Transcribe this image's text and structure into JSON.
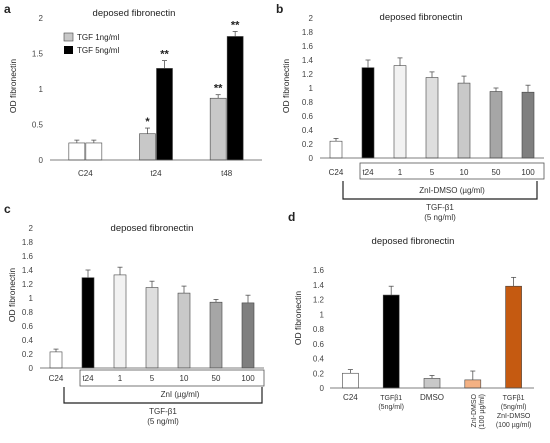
{
  "chart_data": [
    {
      "type": "bar",
      "panel": "a",
      "title": "deposed fibronectin",
      "ylabel": "OD fibronectin",
      "ylim": [
        0,
        2
      ],
      "yticks": [
        "0",
        "0.5",
        "1",
        "1.5",
        "2"
      ],
      "yticks_values": [
        0,
        0.5,
        1,
        1.5,
        2
      ],
      "categories": [
        "C24",
        "t24",
        "t48"
      ],
      "series": [
        {
          "name": "TGF 1ng/ml",
          "values": [
            0.24,
            0.37,
            0.87
          ],
          "errors": [
            0.04,
            0.08,
            0.05
          ],
          "color": "#c8c8c8",
          "stars": [
            "",
            "*",
            "**"
          ]
        },
        {
          "name": "TGF 5ng/ml",
          "values": [
            0.24,
            1.29,
            1.74
          ],
          "errors": [
            0.04,
            0.11,
            0.07
          ],
          "color": "#000000",
          "stars": [
            "",
            "**",
            "**"
          ]
        }
      ],
      "legend_position": "top-left"
    },
    {
      "type": "bar",
      "panel": "b",
      "title": "deposed fibronectin",
      "ylabel": "OD fibronectin",
      "ylim": [
        0,
        2
      ],
      "yticks": [
        "0",
        "0.2",
        "0.4",
        "0.6",
        "0.8",
        "1",
        "1.2",
        "1.4",
        "1.6",
        "1.8",
        "2"
      ],
      "yticks_values": [
        0,
        0.2,
        0.4,
        0.6,
        0.8,
        1,
        1.2,
        1.4,
        1.6,
        1.8,
        2
      ],
      "categories": [
        "C24",
        "t24",
        "1",
        "5",
        "10",
        "50",
        "100"
      ],
      "values": [
        0.24,
        1.29,
        1.32,
        1.15,
        1.07,
        0.95,
        0.94
      ],
      "errors": [
        0.04,
        0.11,
        0.11,
        0.08,
        0.1,
        0.05,
        0.1
      ],
      "colors": [
        "#ffffff",
        "#000000",
        "#f2f2f2",
        "#dedede",
        "#c9c9c9",
        "#a6a6a6",
        "#7f7f7f"
      ],
      "group_label": "ZnI-DMSO (µg/ml)",
      "bracket_label_1": "TGF-β1",
      "bracket_label_2": "(5 ng/ml)"
    },
    {
      "type": "bar",
      "panel": "c",
      "title": "deposed fibronectin",
      "ylabel": "OD fibronectin",
      "ylim": [
        0,
        2
      ],
      "yticks": [
        "0",
        "0.2",
        "0.4",
        "0.6",
        "0.8",
        "1",
        "1.2",
        "1.4",
        "1.6",
        "1.8",
        "2"
      ],
      "yticks_values": [
        0,
        0.2,
        0.4,
        0.6,
        0.8,
        1,
        1.2,
        1.4,
        1.6,
        1.8,
        2
      ],
      "categories": [
        "C24",
        "t24",
        "1",
        "5",
        "10",
        "50",
        "100"
      ],
      "values": [
        0.23,
        1.29,
        1.33,
        1.15,
        1.07,
        0.94,
        0.93
      ],
      "errors": [
        0.04,
        0.11,
        0.11,
        0.09,
        0.1,
        0.04,
        0.11
      ],
      "colors": [
        "#ffffff",
        "#000000",
        "#f2f2f2",
        "#dedede",
        "#c9c9c9",
        "#a6a6a6",
        "#7f7f7f"
      ],
      "group_label": "ZnI (µg/ml)",
      "bracket_label_1": "TGF-β1",
      "bracket_label_2": "(5 ng/ml)"
    },
    {
      "type": "bar",
      "panel": "d",
      "title": "deposed fibronectin",
      "ylabel": "OD fibronectin",
      "ylim": [
        0,
        1.6
      ],
      "yticks": [
        "0",
        "0.2",
        "0.4",
        "0.6",
        "0.8",
        "1",
        "1.2",
        "1.4",
        "1.6"
      ],
      "yticks_values": [
        0,
        0.2,
        0.4,
        0.6,
        0.8,
        1,
        1.2,
        1.4,
        1.6
      ],
      "categories": [
        {
          "lines": [
            "C24"
          ]
        },
        {
          "lines": [
            "TGFβ1",
            "(5ng/ml)"
          ]
        },
        {
          "lines": [
            "DMSO"
          ]
        },
        {
          "lines": [
            "ZnI-DMSO",
            "(100 µg/ml)"
          ]
        },
        {
          "lines": [
            "TGFβ1",
            "(5ng/ml)",
            "ZnI-DMSO",
            "(100 µg/ml)"
          ]
        }
      ],
      "values": [
        0.2,
        1.26,
        0.13,
        0.11,
        1.38
      ],
      "errors": [
        0.05,
        0.12,
        0.04,
        0.12,
        0.12
      ],
      "colors": [
        "#ffffff",
        "#000000",
        "#c8c8c8",
        "#f4b183",
        "#c55a11"
      ]
    }
  ]
}
